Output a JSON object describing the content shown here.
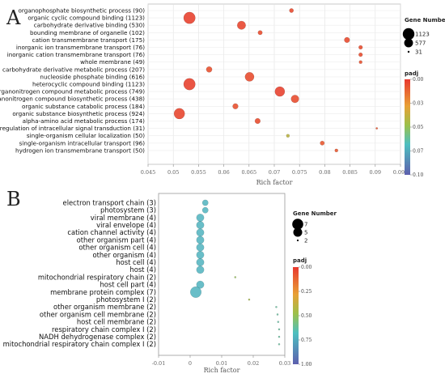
{
  "chart_data": [
    {
      "type": "scatter",
      "panel_label": "A",
      "xlabel": "Rich factor",
      "xlim": [
        0.045,
        0.095
      ],
      "xticks": [
        "0.045",
        "0.05",
        "0.055",
        "0.06",
        "0.065",
        "0.07",
        "0.075",
        "0.08",
        "0.085",
        "0.09",
        "0.095"
      ],
      "grid": true,
      "categories": [
        "organophosphate biosynthetic process (90)",
        "organic cyclic compound binding (1123)",
        "carbohydrate derivative binding (530)",
        "bounding membrane of organelle (102)",
        "cation transmembrane transport (175)",
        "inorganic ion transmembrane transport (76)",
        "inorganic cation transmembrane transport (76)",
        "whole membrane (49)",
        "carbohydrate derivative metabolic process (207)",
        "nucleoside phosphate binding (616)",
        "heterocyclic compound binding (1123)",
        "organonitrogen compound metabolic process (749)",
        "organonitrogen compound biosynthetic process (438)",
        "organic substance catabolic process (184)",
        "organic substance biosynthetic process (924)",
        "alpha-amino acid metabolic process (174)",
        "regulation of intracellular signal transduction (31)",
        "single-organism cellular localization (50)",
        "single-organism intracellular transport (96)",
        "hydrogen ion transmembrane transport (50)"
      ],
      "points": [
        {
          "x": 0.0734,
          "count": 90,
          "padj": 0.005
        },
        {
          "x": 0.0532,
          "count": 1123,
          "padj": 0.003
        },
        {
          "x": 0.0635,
          "count": 530,
          "padj": 0.004
        },
        {
          "x": 0.0672,
          "count": 102,
          "padj": 0.006
        },
        {
          "x": 0.0844,
          "count": 175,
          "padj": 0.005
        },
        {
          "x": 0.0871,
          "count": 76,
          "padj": 0.006
        },
        {
          "x": 0.0871,
          "count": 76,
          "padj": 0.006
        },
        {
          "x": 0.0871,
          "count": 49,
          "padj": 0.007
        },
        {
          "x": 0.0571,
          "count": 207,
          "padj": 0.007
        },
        {
          "x": 0.0651,
          "count": 616,
          "padj": 0.006
        },
        {
          "x": 0.0532,
          "count": 1123,
          "padj": 0.003
        },
        {
          "x": 0.0711,
          "count": 749,
          "padj": 0.003
        },
        {
          "x": 0.0741,
          "count": 438,
          "padj": 0.006
        },
        {
          "x": 0.0623,
          "count": 184,
          "padj": 0.007
        },
        {
          "x": 0.0512,
          "count": 924,
          "padj": 0.004
        },
        {
          "x": 0.0667,
          "count": 174,
          "padj": 0.006
        },
        {
          "x": 0.0903,
          "count": 31,
          "padj": 0.008
        },
        {
          "x": 0.0727,
          "count": 50,
          "padj": 0.04
        },
        {
          "x": 0.0795,
          "count": 96,
          "padj": 0.009
        },
        {
          "x": 0.0823,
          "count": 50,
          "padj": 0.009
        }
      ],
      "size_legend": {
        "title": "Gene Number",
        "values": [
          1123,
          577,
          31
        ]
      },
      "color_legend": {
        "title": "padj",
        "ticks": [
          "0.00",
          "0.03",
          "0.05",
          "0.07",
          "0.10"
        ],
        "range": [
          0,
          0.1
        ]
      }
    },
    {
      "type": "scatter",
      "panel_label": "B",
      "xlabel": "Rich factor",
      "xlim": [
        -0.01,
        0.03
      ],
      "xticks": [
        "-0.01",
        "0",
        "0.01",
        "0.02",
        "0.03"
      ],
      "grid": false,
      "categories": [
        "electron transport chain (3)",
        "photosystem (3)",
        "viral membrane (4)",
        "viral envelope (4)",
        "cation channel activity (4)",
        "other organism part (4)",
        "other organism cell (4)",
        "other organism (4)",
        "host cell (4)",
        "host (4)",
        "mitochondrial respiratory chain (2)",
        "host cell part (4)",
        "membrane protein complex (7)",
        "photosystem I (2)",
        "other organism membrane (2)",
        "other organism cell membrane (2)",
        "host cell membrane (2)",
        "respiratory chain complex I (2)",
        "NADH dehydrogenase complex (2)",
        "mitochondrial respiratory chain complex I (2)"
      ],
      "points": [
        {
          "x": 0.0048,
          "count": 3,
          "padj": 0.72
        },
        {
          "x": 0.0048,
          "count": 3,
          "padj": 0.72
        },
        {
          "x": 0.0032,
          "count": 4,
          "padj": 0.72
        },
        {
          "x": 0.0032,
          "count": 4,
          "padj": 0.72
        },
        {
          "x": 0.0032,
          "count": 4,
          "padj": 0.72
        },
        {
          "x": 0.0032,
          "count": 4,
          "padj": 0.72
        },
        {
          "x": 0.0032,
          "count": 4,
          "padj": 0.72
        },
        {
          "x": 0.0032,
          "count": 4,
          "padj": 0.72
        },
        {
          "x": 0.0032,
          "count": 4,
          "padj": 0.72
        },
        {
          "x": 0.0032,
          "count": 4,
          "padj": 0.72
        },
        {
          "x": 0.0143,
          "count": 2,
          "padj": 0.5
        },
        {
          "x": 0.0032,
          "count": 4,
          "padj": 0.72
        },
        {
          "x": 0.0018,
          "count": 7,
          "padj": 0.72
        },
        {
          "x": 0.0187,
          "count": 2,
          "padj": 0.45
        },
        {
          "x": 0.0273,
          "count": 2,
          "padj": 0.62
        },
        {
          "x": 0.0277,
          "count": 2,
          "padj": 0.62
        },
        {
          "x": 0.0279,
          "count": 2,
          "padj": 0.63
        },
        {
          "x": 0.0282,
          "count": 2,
          "padj": 0.62
        },
        {
          "x": 0.0282,
          "count": 2,
          "padj": 0.62
        },
        {
          "x": 0.0282,
          "count": 2,
          "padj": 0.62
        }
      ],
      "size_legend": {
        "title": "Gene Number",
        "values": [
          7,
          5,
          2
        ]
      },
      "color_legend": {
        "title": "padj",
        "ticks": [
          "0.00",
          "0.25",
          "0.50",
          "0.75",
          "1.00"
        ],
        "range": [
          0,
          1
        ]
      }
    }
  ]
}
